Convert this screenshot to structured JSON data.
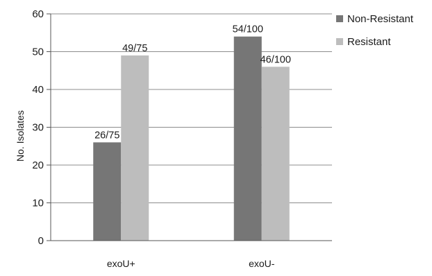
{
  "chart_data": {
    "type": "bar",
    "categories": [
      "exoU+",
      "exoU-"
    ],
    "series": [
      {
        "name": "Non-Resistant",
        "values": [
          26,
          54
        ],
        "labels": [
          "26/75",
          "54/100"
        ],
        "color": "#767676"
      },
      {
        "name": "Resistant",
        "values": [
          49,
          46
        ],
        "labels": [
          "49/75",
          "46/100"
        ],
        "color": "#bdbdbd"
      }
    ],
    "ylabel": "No. Isolates",
    "xlabel": "",
    "title": "",
    "ylim": [
      0,
      60
    ],
    "yticks": [
      0,
      10,
      20,
      30,
      40,
      50,
      60
    ],
    "grid": true,
    "legend": "top-right"
  }
}
